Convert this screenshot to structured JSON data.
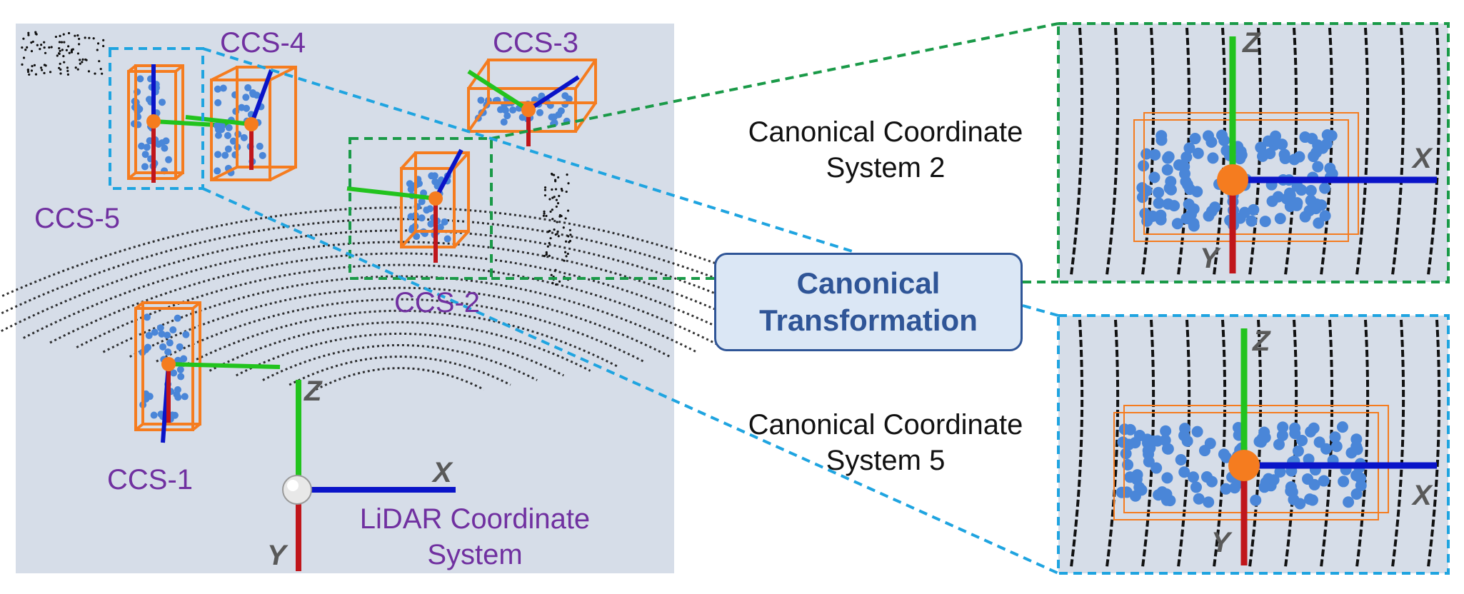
{
  "labels": {
    "ccs1": "CCS-1",
    "ccs2": "CCS-2",
    "ccs3": "CCS-3",
    "ccs4": "CCS-4",
    "ccs5": "CCS-5",
    "lidar_line1": "LiDAR Coordinate",
    "lidar_line2": "System"
  },
  "axes": {
    "x": "X",
    "y": "Y",
    "z": "Z"
  },
  "transformation": {
    "line1": "Canonical",
    "line2": "Transformation"
  },
  "zoom_top": {
    "caption_line1": "Canonical Coordinate",
    "caption_line2": "System 2"
  },
  "zoom_bottom": {
    "caption_line1": "Canonical Coordinate",
    "caption_line2": "System 5"
  },
  "colors": {
    "scene_background": "#d6dde8",
    "object_box": "#f57c1f",
    "object_points": "#4a86d8",
    "axis_x": "#0a14c8",
    "axis_y": "#c0161b",
    "axis_z": "#22c31e",
    "highlight_green": "#1a9a48",
    "highlight_blue": "#1fa4e0",
    "ccs_label": "#7030a0",
    "transform_text": "#2f5597",
    "transform_fill": "#dbe7f5"
  }
}
